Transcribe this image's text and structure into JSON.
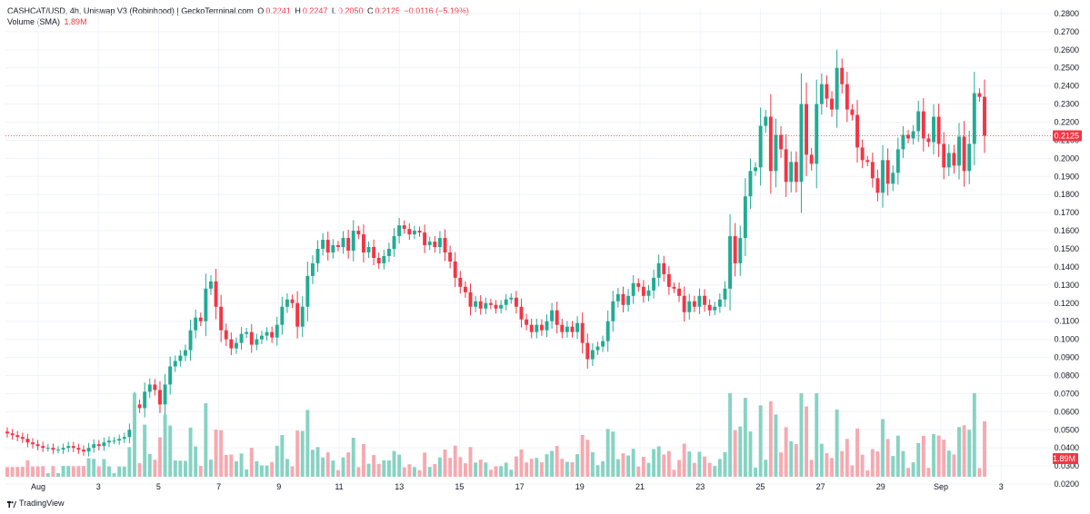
{
  "header": {
    "symbol": "CASHCAT/USD, 4h, Uniswap V3 (Robinhood) | GeckoTerminal.com",
    "o_label": "O",
    "o_value": "0.2241",
    "h_label": "H",
    "h_value": "0.2247",
    "l_label": "L",
    "l_value": "0.2050",
    "c_label": "C",
    "c_value": "0.2125",
    "change": "−0.0116 (−5.19%)",
    "volume_label": "Volume (SMA)",
    "volume_value": "1.89M"
  },
  "branding": {
    "text": "TradingView"
  },
  "colors": {
    "up": "#22ab94",
    "down": "#f23645",
    "up_vol": "#86d3c3",
    "down_vol": "#f7a9b0",
    "grid": "#f0f3fa"
  },
  "chart_data": {
    "type": "candlestick",
    "interval": "4h",
    "y_axis": {
      "ticks": [
        "0.2800",
        "0.2700",
        "0.2600",
        "0.2500",
        "0.2400",
        "0.2300",
        "0.2200",
        "0.2100",
        "0.2000",
        "0.1900",
        "0.1800",
        "0.1700",
        "0.1600",
        "0.1500",
        "0.1400",
        "0.1300",
        "0.1200",
        "0.1100",
        "0.1000",
        "0.0900",
        "0.0800",
        "0.0700",
        "0.0600",
        "0.0500",
        "0.0400",
        "0.0300",
        "0.0200"
      ],
      "range": [
        0.0165,
        0.2835
      ]
    },
    "x_axis": {
      "ticks": [
        "Aug",
        "3",
        "5",
        "7",
        "9",
        "11",
        "13",
        "15",
        "17",
        "19",
        "21",
        "23",
        "25",
        "27",
        "29",
        "Sep",
        "3"
      ]
    },
    "last_price": {
      "value": 0.2125,
      "label": "0.2125"
    },
    "volume_badge": "1.89M",
    "close_series": [
      0.048,
      0.047,
      0.046,
      0.045,
      0.043,
      0.042,
      0.041,
      0.04,
      0.04,
      0.039,
      0.039,
      0.04,
      0.041,
      0.04,
      0.039,
      0.038,
      0.04,
      0.042,
      0.041,
      0.043,
      0.044,
      0.044,
      0.045,
      0.046,
      0.05,
      0.064,
      0.062,
      0.071,
      0.075,
      0.072,
      0.064,
      0.075,
      0.085,
      0.088,
      0.091,
      0.094,
      0.105,
      0.112,
      0.11,
      0.128,
      0.132,
      0.118,
      0.105,
      0.1,
      0.095,
      0.098,
      0.103,
      0.104,
      0.097,
      0.1,
      0.102,
      0.104,
      0.101,
      0.108,
      0.118,
      0.122,
      0.12,
      0.107,
      0.118,
      0.135,
      0.142,
      0.15,
      0.155,
      0.148,
      0.152,
      0.151,
      0.156,
      0.149,
      0.16,
      0.158,
      0.148,
      0.151,
      0.145,
      0.142,
      0.146,
      0.15,
      0.157,
      0.163,
      0.161,
      0.158,
      0.16,
      0.159,
      0.152,
      0.154,
      0.151,
      0.156,
      0.148,
      0.143,
      0.134,
      0.129,
      0.126,
      0.118,
      0.121,
      0.117,
      0.12,
      0.119,
      0.117,
      0.119,
      0.122,
      0.123,
      0.118,
      0.111,
      0.108,
      0.104,
      0.108,
      0.105,
      0.11,
      0.116,
      0.108,
      0.104,
      0.107,
      0.104,
      0.109,
      0.098,
      0.089,
      0.094,
      0.096,
      0.099,
      0.11,
      0.121,
      0.125,
      0.119,
      0.124,
      0.131,
      0.129,
      0.124,
      0.127,
      0.134,
      0.142,
      0.136,
      0.129,
      0.128,
      0.124,
      0.115,
      0.121,
      0.118,
      0.124,
      0.119,
      0.116,
      0.118,
      0.122,
      0.128,
      0.157,
      0.142,
      0.156,
      0.179,
      0.193,
      0.195,
      0.218,
      0.223,
      0.193,
      0.213,
      0.205,
      0.187,
      0.198,
      0.187,
      0.23,
      0.202,
      0.197,
      0.23,
      0.241,
      0.233,
      0.227,
      0.25,
      0.241,
      0.227,
      0.224,
      0.206,
      0.199,
      0.198,
      0.189,
      0.181,
      0.199,
      0.186,
      0.192,
      0.205,
      0.213,
      0.211,
      0.215,
      0.226,
      0.211,
      0.209,
      0.223,
      0.208,
      0.195,
      0.203,
      0.196,
      0.212,
      0.193,
      0.208,
      0.236,
      0.234,
      0.2125
    ]
  }
}
